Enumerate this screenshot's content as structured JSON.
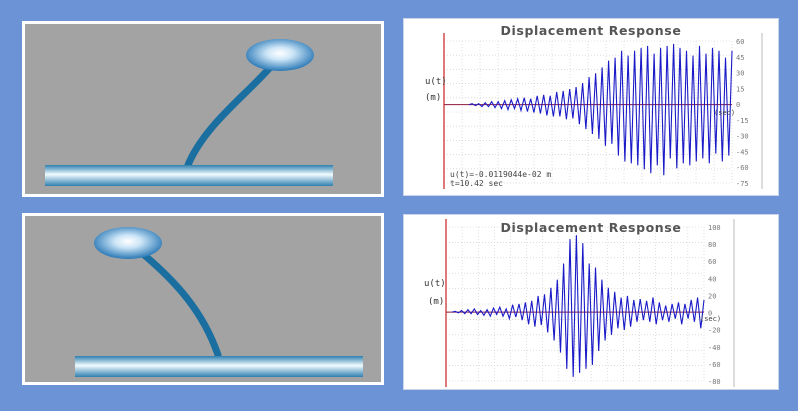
{
  "colors": {
    "background": "#6b93d6",
    "sim_bg": "#a3a3a3",
    "column": "#1a6fa0",
    "signal": "#1a1ac8",
    "zero_line": "#8b1a3a",
    "time_axis": "#cc2222"
  },
  "top_chart": {
    "title": "Displacement Response",
    "ylabel_line1": "u(t)",
    "ylabel_line2": "(m)",
    "readout_line1": "u(t)=-0.0119044e-02 m",
    "readout_line2": "t=10.42 sec",
    "ticks": [
      "60",
      "45",
      "30",
      "15",
      "0",
      "-15",
      "-30",
      "-45",
      "-60",
      "-75"
    ],
    "side_mark": "(sec)"
  },
  "bottom_chart": {
    "title": "Displacement Response",
    "ylabel_line1": "u(t)",
    "ylabel_line2": "(m)",
    "ticks": [
      "100",
      "80",
      "60",
      "40",
      "20",
      "0",
      "-20",
      "-40",
      "-60",
      "-80"
    ],
    "side_mark": "(sec)"
  },
  "chart_data": [
    {
      "type": "line",
      "title": "Displacement Response",
      "ylabel": "u(t) (m)",
      "xlabel": "",
      "ylim": [
        -80,
        65
      ],
      "grid": true,
      "series": [
        {
          "values": [
            0,
            1,
            -1,
            1,
            -2,
            2,
            -2,
            3,
            -3,
            3,
            -4,
            4,
            -5,
            5,
            -4,
            6,
            -6,
            7,
            -7,
            6,
            -8,
            9,
            -9,
            10,
            -11,
            9,
            -12,
            13,
            -12,
            14,
            -15,
            16,
            -14,
            18,
            -20,
            22,
            -25,
            28,
            -30,
            32,
            -35,
            38,
            -42,
            45,
            -40,
            48,
            -52,
            55,
            -58,
            50,
            -60,
            55,
            -62,
            58,
            -66,
            60,
            -70,
            52,
            -62,
            58,
            -72,
            60,
            -55,
            62,
            -65,
            58,
            -60,
            55,
            -62,
            50,
            -58,
            60,
            -55,
            52,
            -60,
            58,
            -50,
            55,
            -58,
            48,
            -52,
            55
          ]
        }
      ]
    },
    {
      "type": "line",
      "title": "Displacement Response",
      "ylabel": "u(t) (m)",
      "xlabel": "",
      "ylim": [
        -85,
        105
      ],
      "grid": true,
      "series": [
        {
          "values": [
            0,
            1,
            -1,
            2,
            -2,
            3,
            -2,
            4,
            -3,
            2,
            -4,
            3,
            -5,
            5,
            -3,
            6,
            -5,
            4,
            -8,
            9,
            -6,
            10,
            -10,
            12,
            -15,
            14,
            -18,
            20,
            -16,
            22,
            -25,
            30,
            -35,
            40,
            -50,
            60,
            -70,
            90,
            -80,
            95,
            -75,
            85,
            -70,
            60,
            -65,
            55,
            -48,
            40,
            -35,
            30,
            -28,
            25,
            -20,
            18,
            -22,
            20,
            -18,
            15,
            -12,
            16,
            -10,
            14,
            -12,
            18,
            -15,
            12,
            -10,
            8,
            -12,
            10,
            -8,
            12,
            -15,
            10,
            -8,
            15,
            -12,
            18,
            -20,
            15
          ]
        }
      ]
    }
  ]
}
